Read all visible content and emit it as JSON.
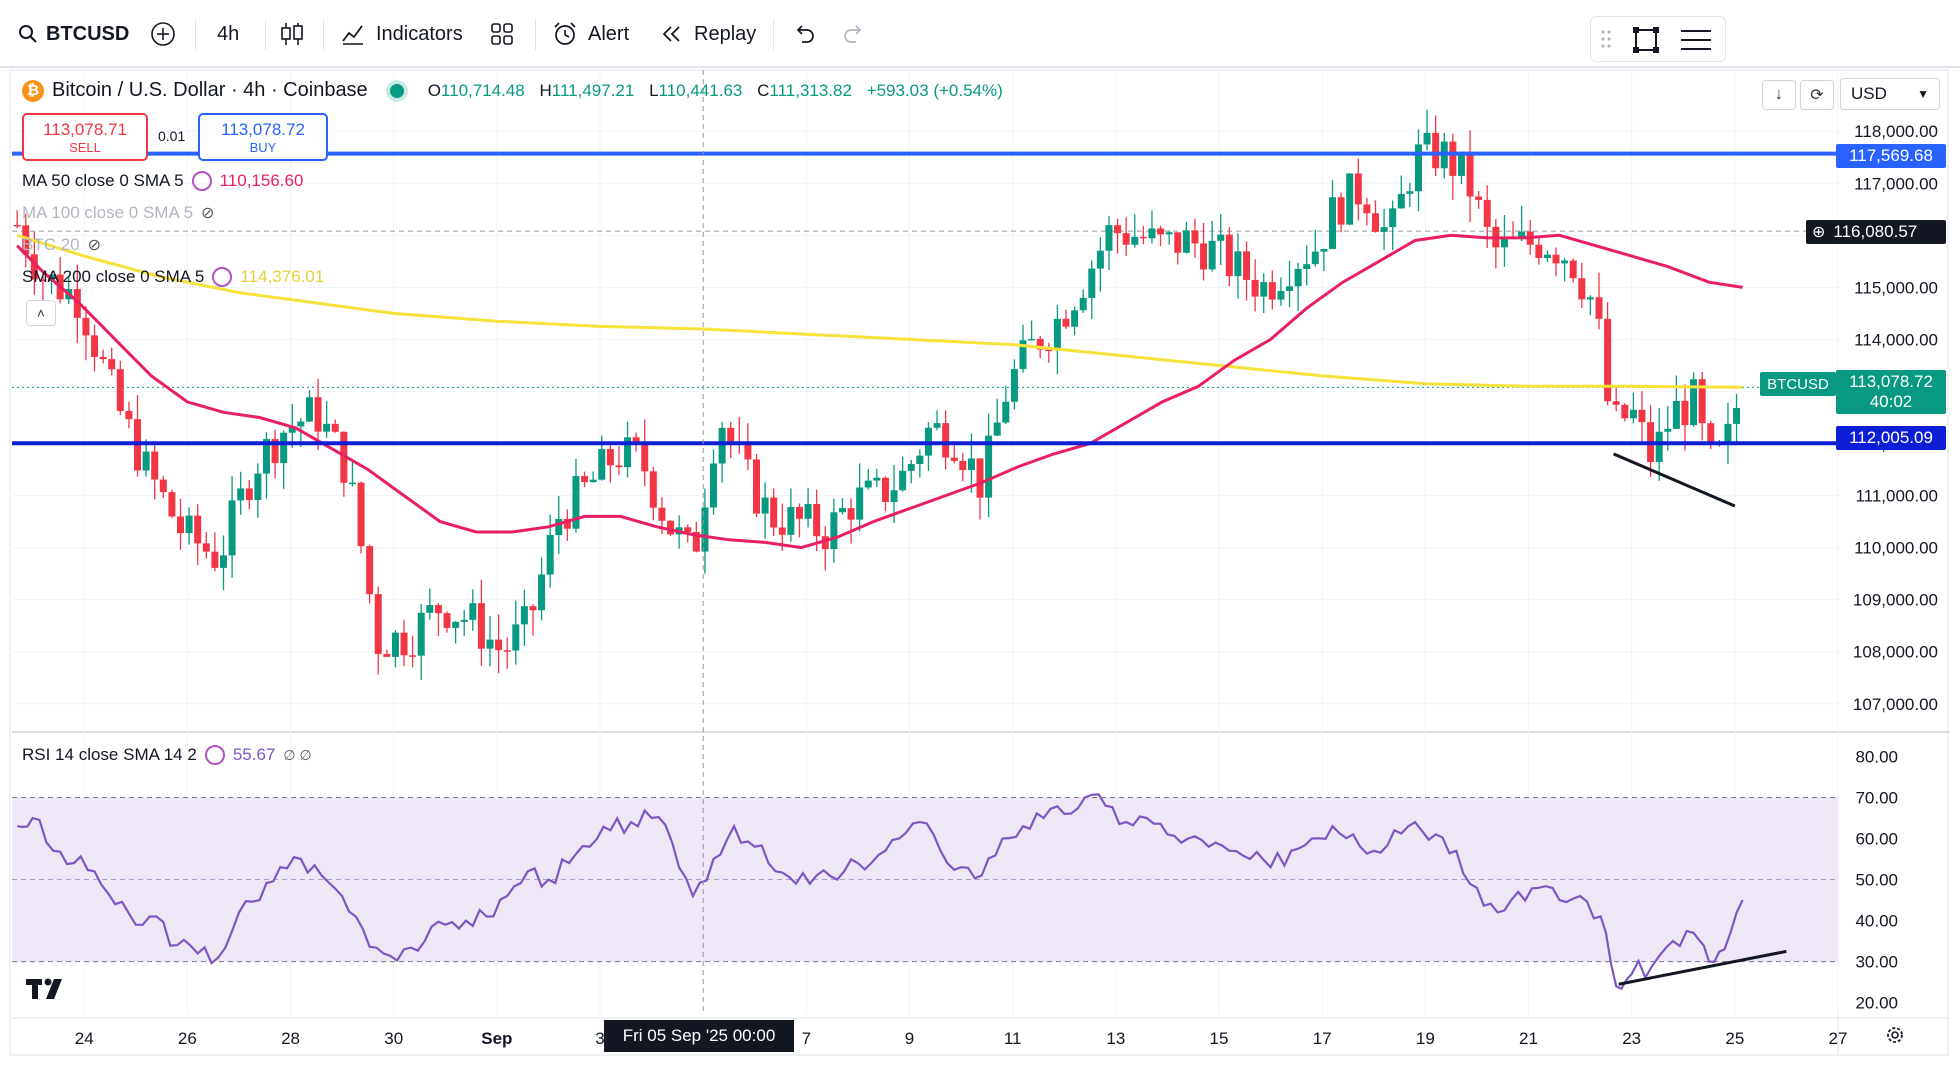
{
  "toolbar": {
    "symbol": "BTCUSD",
    "interval": "4h",
    "indicators_label": "Indicators",
    "alert_label": "Alert",
    "replay_label": "Replay"
  },
  "header": {
    "title": "Bitcoin / U.S. Dollar · 4h · Coinbase",
    "open_label": "O",
    "open": "110,714.48",
    "high_label": "H",
    "high": "111,497.21",
    "low_label": "L",
    "low": "110,441.63",
    "close_label": "C",
    "close": "111,313.82",
    "change": "+593.03 (+0.54%)",
    "currency": "USD"
  },
  "trade": {
    "sell_price": "113,078.71",
    "sell_label": "SELL",
    "spread": "0.01",
    "buy_price": "113,078.72",
    "buy_label": "BUY"
  },
  "indicators": [
    {
      "label": "MA 50 close 0 SMA 5",
      "value": "110,156.60",
      "color": "#e91e63"
    },
    {
      "label": "MA 100 close 0 SMA 5",
      "value": "",
      "color": "#9aa0a6"
    },
    {
      "label": "BTC 20",
      "value": "",
      "color": "#9aa0a6"
    },
    {
      "label": "SMA 200 close 0 SMA 5",
      "value": "114,376.01",
      "color": "#f5e23a"
    }
  ],
  "rsi_legend": {
    "label": "RSI 14 close SMA 14 2",
    "value": "55.67",
    "extra": "∅ ∅"
  },
  "price_tags": {
    "resistance": "117,569.68",
    "crosshair": "116,080.57",
    "symbol_tag": "BTCUSD",
    "last": "113,078.72",
    "countdown": "40:02",
    "support": "112,005.09"
  },
  "crosshair_date": "Fri 05 Sep '25   00:00",
  "colors": {
    "up": "#089981",
    "down": "#f23645",
    "ma50": "#e91e63",
    "sma200": "#f5e23a",
    "line_top": "#2962ff",
    "line_bottom": "#0d1fd6",
    "rsi": "#7e57c2",
    "rsi_band": "#ede7f6"
  },
  "chart_data": {
    "type": "candlestick",
    "title": "Bitcoin / U.S. Dollar · 4h · Coinbase",
    "y_ticks": [
      "118,000.00",
      "117,000.00",
      "116,000.00",
      "115,000.00",
      "114,000.00",
      "113,000.00",
      "112,000.00",
      "111,000.00",
      "110,000.00",
      "109,000.00",
      "108,000.00",
      "107,000.00"
    ],
    "ylim": [
      106400,
      118600
    ],
    "x_ticks": [
      {
        "label": "24",
        "day": 24
      },
      {
        "label": "26",
        "day": 26
      },
      {
        "label": "28",
        "day": 28
      },
      {
        "label": "30",
        "day": 30
      },
      {
        "label": "Sep",
        "day": 32
      },
      {
        "label": "3",
        "day": 34
      },
      {
        "label": "7",
        "day": 38
      },
      {
        "label": "9",
        "day": 40
      },
      {
        "label": "11",
        "day": 42
      },
      {
        "label": "13",
        "day": 44
      },
      {
        "label": "15",
        "day": 46
      },
      {
        "label": "17",
        "day": 48
      },
      {
        "label": "19",
        "day": 50
      },
      {
        "label": "21",
        "day": 52
      },
      {
        "label": "23",
        "day": 54
      },
      {
        "label": "25",
        "day": 56
      },
      {
        "label": "27",
        "day": 58
      }
    ],
    "x_domain": [
      22.6,
      58
    ],
    "crosshair_day": 36,
    "horizontal_levels": [
      {
        "name": "resistance",
        "price": 117569.68
      },
      {
        "name": "support",
        "price": 112005.09
      }
    ],
    "close_anchors": [
      [
        22.7,
        116200
      ],
      [
        23.2,
        115200
      ],
      [
        23.9,
        114800
      ],
      [
        24.6,
        112800
      ],
      [
        25.2,
        111500
      ],
      [
        25.9,
        110300
      ],
      [
        26.6,
        109800
      ],
      [
        27.3,
        111600
      ],
      [
        27.9,
        112300
      ],
      [
        28.5,
        112600
      ],
      [
        29.1,
        111500
      ],
      [
        29.7,
        108200
      ],
      [
        30.3,
        108300
      ],
      [
        30.9,
        108900
      ],
      [
        31.5,
        108600
      ],
      [
        32.1,
        108000
      ],
      [
        32.6,
        108500
      ],
      [
        33.2,
        110600
      ],
      [
        33.8,
        111200
      ],
      [
        34.3,
        111800
      ],
      [
        34.8,
        111700
      ],
      [
        35.3,
        110500
      ],
      [
        35.8,
        109800
      ],
      [
        36.3,
        112600
      ],
      [
        36.8,
        111400
      ],
      [
        37.3,
        110600
      ],
      [
        37.8,
        110500
      ],
      [
        38.4,
        110300
      ],
      [
        38.9,
        110900
      ],
      [
        39.4,
        111000
      ],
      [
        39.9,
        111400
      ],
      [
        40.4,
        112300
      ],
      [
        40.9,
        112100
      ],
      [
        41.4,
        111200
      ],
      [
        41.9,
        113100
      ],
      [
        42.4,
        113900
      ],
      [
        42.9,
        114400
      ],
      [
        43.4,
        115200
      ],
      [
        43.9,
        116100
      ],
      [
        44.4,
        116000
      ],
      [
        44.9,
        115800
      ],
      [
        45.4,
        115900
      ],
      [
        45.9,
        115700
      ],
      [
        46.4,
        115300
      ],
      [
        46.9,
        115000
      ],
      [
        47.4,
        115500
      ],
      [
        47.9,
        115800
      ],
      [
        48.3,
        116600
      ],
      [
        48.8,
        116900
      ],
      [
        49.3,
        115900
      ],
      [
        49.8,
        117500
      ],
      [
        50.3,
        117600
      ],
      [
        50.8,
        117100
      ],
      [
        51.3,
        115700
      ],
      [
        51.8,
        115800
      ],
      [
        52.3,
        115900
      ],
      [
        52.8,
        115600
      ],
      [
        53.3,
        114600
      ],
      [
        53.6,
        112300
      ],
      [
        54.0,
        112600
      ],
      [
        54.4,
        111700
      ],
      [
        54.8,
        112600
      ],
      [
        55.2,
        112800
      ],
      [
        55.5,
        111600
      ],
      [
        55.8,
        111800
      ],
      [
        56.0,
        112600
      ],
      [
        56.15,
        113080
      ]
    ],
    "ma50": [
      [
        22.7,
        115800
      ],
      [
        23.2,
        115300
      ],
      [
        23.9,
        114700
      ],
      [
        24.6,
        114000
      ],
      [
        25.3,
        113300
      ],
      [
        26.0,
        112800
      ],
      [
        26.7,
        112600
      ],
      [
        27.4,
        112500
      ],
      [
        28.1,
        112300
      ],
      [
        28.8,
        111900
      ],
      [
        29.5,
        111500
      ],
      [
        30.2,
        111000
      ],
      [
        30.9,
        110500
      ],
      [
        31.6,
        110300
      ],
      [
        32.3,
        110300
      ],
      [
        33.0,
        110400
      ],
      [
        33.7,
        110600
      ],
      [
        34.4,
        110600
      ],
      [
        35.1,
        110400
      ],
      [
        35.8,
        110250
      ],
      [
        36.5,
        110150
      ],
      [
        37.2,
        110100
      ],
      [
        37.9,
        110000
      ],
      [
        38.6,
        110200
      ],
      [
        39.3,
        110500
      ],
      [
        40.0,
        110750
      ],
      [
        40.7,
        111000
      ],
      [
        41.4,
        111250
      ],
      [
        42.1,
        111550
      ],
      [
        42.8,
        111800
      ],
      [
        43.5,
        112000
      ],
      [
        44.2,
        112400
      ],
      [
        44.9,
        112800
      ],
      [
        45.6,
        113100
      ],
      [
        46.3,
        113600
      ],
      [
        47.0,
        114000
      ],
      [
        47.7,
        114600
      ],
      [
        48.4,
        115100
      ],
      [
        49.1,
        115500
      ],
      [
        49.8,
        115900
      ],
      [
        50.5,
        116000
      ],
      [
        51.2,
        115950
      ],
      [
        51.9,
        115950
      ],
      [
        52.6,
        116000
      ],
      [
        53.3,
        115800
      ],
      [
        54.0,
        115600
      ],
      [
        54.7,
        115400
      ],
      [
        55.5,
        115100
      ],
      [
        56.15,
        115000
      ]
    ],
    "sma200": [
      [
        22.7,
        116000
      ],
      [
        24.0,
        115600
      ],
      [
        25.5,
        115200
      ],
      [
        27.0,
        114900
      ],
      [
        28.5,
        114700
      ],
      [
        30.0,
        114500
      ],
      [
        32.0,
        114350
      ],
      [
        34.0,
        114250
      ],
      [
        36.0,
        114200
      ],
      [
        38.0,
        114100
      ],
      [
        40.0,
        114000
      ],
      [
        42.0,
        113900
      ],
      [
        44.0,
        113700
      ],
      [
        46.0,
        113500
      ],
      [
        48.0,
        113300
      ],
      [
        50.0,
        113150
      ],
      [
        52.0,
        113100
      ],
      [
        54.0,
        113100
      ],
      [
        56.15,
        113080
      ]
    ],
    "trendline_price": [
      [
        53.65,
        111800
      ],
      [
        56.0,
        110800
      ]
    ],
    "rsi": {
      "y_ticks": [
        "80.00",
        "70.00",
        "60.00",
        "50.00",
        "40.00",
        "30.00",
        "20.00"
      ],
      "ylim": [
        17,
        84
      ],
      "overbought": 70,
      "oversold": 30,
      "values_anchor": [
        [
          22.7,
          63
        ],
        [
          23.0,
          65
        ],
        [
          23.4,
          57
        ],
        [
          23.8,
          54
        ],
        [
          24.2,
          52
        ],
        [
          24.6,
          44
        ],
        [
          25.0,
          39
        ],
        [
          25.4,
          41
        ],
        [
          25.8,
          34
        ],
        [
          26.2,
          32
        ],
        [
          26.6,
          31
        ],
        [
          27.0,
          42
        ],
        [
          27.4,
          45
        ],
        [
          27.8,
          53
        ],
        [
          28.2,
          55
        ],
        [
          28.6,
          51
        ],
        [
          29.0,
          46
        ],
        [
          29.4,
          38
        ],
        [
          29.8,
          32
        ],
        [
          30.2,
          33
        ],
        [
          30.6,
          35
        ],
        [
          31.0,
          39
        ],
        [
          31.4,
          40
        ],
        [
          31.8,
          41
        ],
        [
          32.2,
          46
        ],
        [
          32.6,
          52
        ],
        [
          33.0,
          50
        ],
        [
          33.4,
          54
        ],
        [
          33.8,
          58
        ],
        [
          34.2,
          62
        ],
        [
          34.6,
          64
        ],
        [
          35.0,
          65
        ],
        [
          35.4,
          59
        ],
        [
          35.8,
          46
        ],
        [
          36.2,
          55
        ],
        [
          36.6,
          63
        ],
        [
          37.0,
          58
        ],
        [
          37.4,
          52
        ],
        [
          37.8,
          49
        ],
        [
          38.2,
          51
        ],
        [
          38.6,
          50
        ],
        [
          39.0,
          54
        ],
        [
          39.4,
          56
        ],
        [
          39.8,
          60
        ],
        [
          40.2,
          64
        ],
        [
          40.6,
          57
        ],
        [
          41.0,
          53
        ],
        [
          41.4,
          51
        ],
        [
          41.8,
          60
        ],
        [
          42.2,
          63
        ],
        [
          42.6,
          65
        ],
        [
          43.0,
          66
        ],
        [
          43.4,
          70
        ],
        [
          43.8,
          68
        ],
        [
          44.2,
          64
        ],
        [
          44.6,
          65
        ],
        [
          45.0,
          61
        ],
        [
          45.4,
          60
        ],
        [
          45.8,
          58
        ],
        [
          46.2,
          57
        ],
        [
          46.6,
          55
        ],
        [
          47.0,
          53
        ],
        [
          47.4,
          57
        ],
        [
          47.8,
          60
        ],
        [
          48.2,
          63
        ],
        [
          48.6,
          61
        ],
        [
          49.0,
          57
        ],
        [
          49.4,
          62
        ],
        [
          49.8,
          64
        ],
        [
          50.2,
          61
        ],
        [
          50.6,
          57
        ],
        [
          51.0,
          48
        ],
        [
          51.4,
          42
        ],
        [
          51.8,
          47
        ],
        [
          52.2,
          48
        ],
        [
          52.6,
          45
        ],
        [
          53.0,
          46
        ],
        [
          53.4,
          41
        ],
        [
          53.7,
          24
        ],
        [
          54.0,
          27
        ],
        [
          54.4,
          29
        ],
        [
          54.8,
          35
        ],
        [
          55.2,
          37
        ],
        [
          55.5,
          30
        ],
        [
          55.8,
          33
        ],
        [
          56.15,
          45
        ]
      ],
      "trendline": [
        [
          53.75,
          24.5
        ],
        [
          57.0,
          32.5
        ]
      ]
    }
  }
}
